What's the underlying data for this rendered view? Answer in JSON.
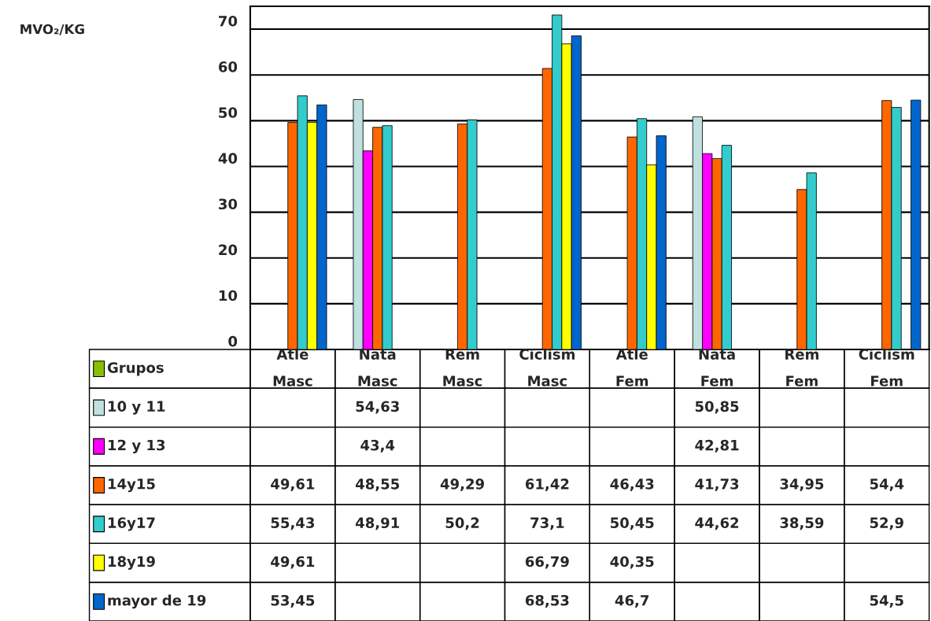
{
  "chart_data": {
    "type": "bar",
    "annotations": [
      "MVO₂/KG"
    ],
    "legend": "bottom left",
    "categories": [
      "Atle\nMasc",
      "Nata\nMasc",
      "Rem\nMasc",
      "Ciclism\nMasc",
      "Atle\nFem",
      "Nata\nFem",
      "Rem\nFem",
      "Ciclism\nFem"
    ],
    "ylim": [
      0,
      75
    ],
    "yticks": [
      0,
      10,
      20,
      30,
      40,
      50,
      60,
      70
    ],
    "grid": "y",
    "tick_labels": "y",
    "series": [
      {
        "name": "Grupos",
        "color": "#88c000",
        "values": [
          null,
          null,
          null,
          null,
          null,
          null,
          null,
          null
        ],
        "value_labels": [
          null,
          null,
          null,
          null,
          null,
          null,
          null,
          null
        ]
      },
      {
        "name": "10 y 11",
        "color": "#c0e0e0",
        "values": [
          null,
          54.63,
          null,
          null,
          null,
          50.85,
          null,
          null
        ],
        "value_labels": [
          null,
          "54,63",
          null,
          null,
          null,
          "50,85",
          null,
          null
        ]
      },
      {
        "name": "12 y 13",
        "color": "#ff00ff",
        "values": [
          null,
          43.4,
          null,
          null,
          null,
          42.81,
          null,
          null
        ],
        "value_labels": [
          null,
          "43,4",
          null,
          null,
          null,
          "42,81",
          null,
          null
        ]
      },
      {
        "name": "14y15",
        "color": "#ff6600",
        "values": [
          49.61,
          48.55,
          49.29,
          61.42,
          46.43,
          41.73,
          34.95,
          54.4
        ],
        "value_labels": [
          "49,61",
          "48,55",
          "49,29",
          "61,42",
          "46,43",
          "41,73",
          "34,95",
          "54,4"
        ]
      },
      {
        "name": "16y17",
        "color": "#33cccc",
        "values": [
          55.43,
          48.91,
          50.2,
          73.1,
          50.45,
          44.62,
          38.59,
          52.9
        ],
        "value_labels": [
          "55,43",
          "48,91",
          "50,2",
          "73,1",
          "50,45",
          "44,62",
          "38,59",
          "52,9"
        ]
      },
      {
        "name": "18y19",
        "color": "#ffff00",
        "values": [
          49.61,
          null,
          null,
          66.79,
          40.35,
          null,
          null,
          null
        ],
        "value_labels": [
          "49,61",
          null,
          null,
          "66,79",
          "40,35",
          null,
          null,
          null
        ]
      },
      {
        "name": "mayor de 19",
        "color": "#0066cc",
        "values": [
          53.45,
          null,
          null,
          68.53,
          46.7,
          null,
          null,
          54.5
        ],
        "value_labels": [
          "53,45",
          null,
          null,
          "68,53",
          "46,7",
          null,
          null,
          "54,5"
        ]
      }
    ]
  }
}
